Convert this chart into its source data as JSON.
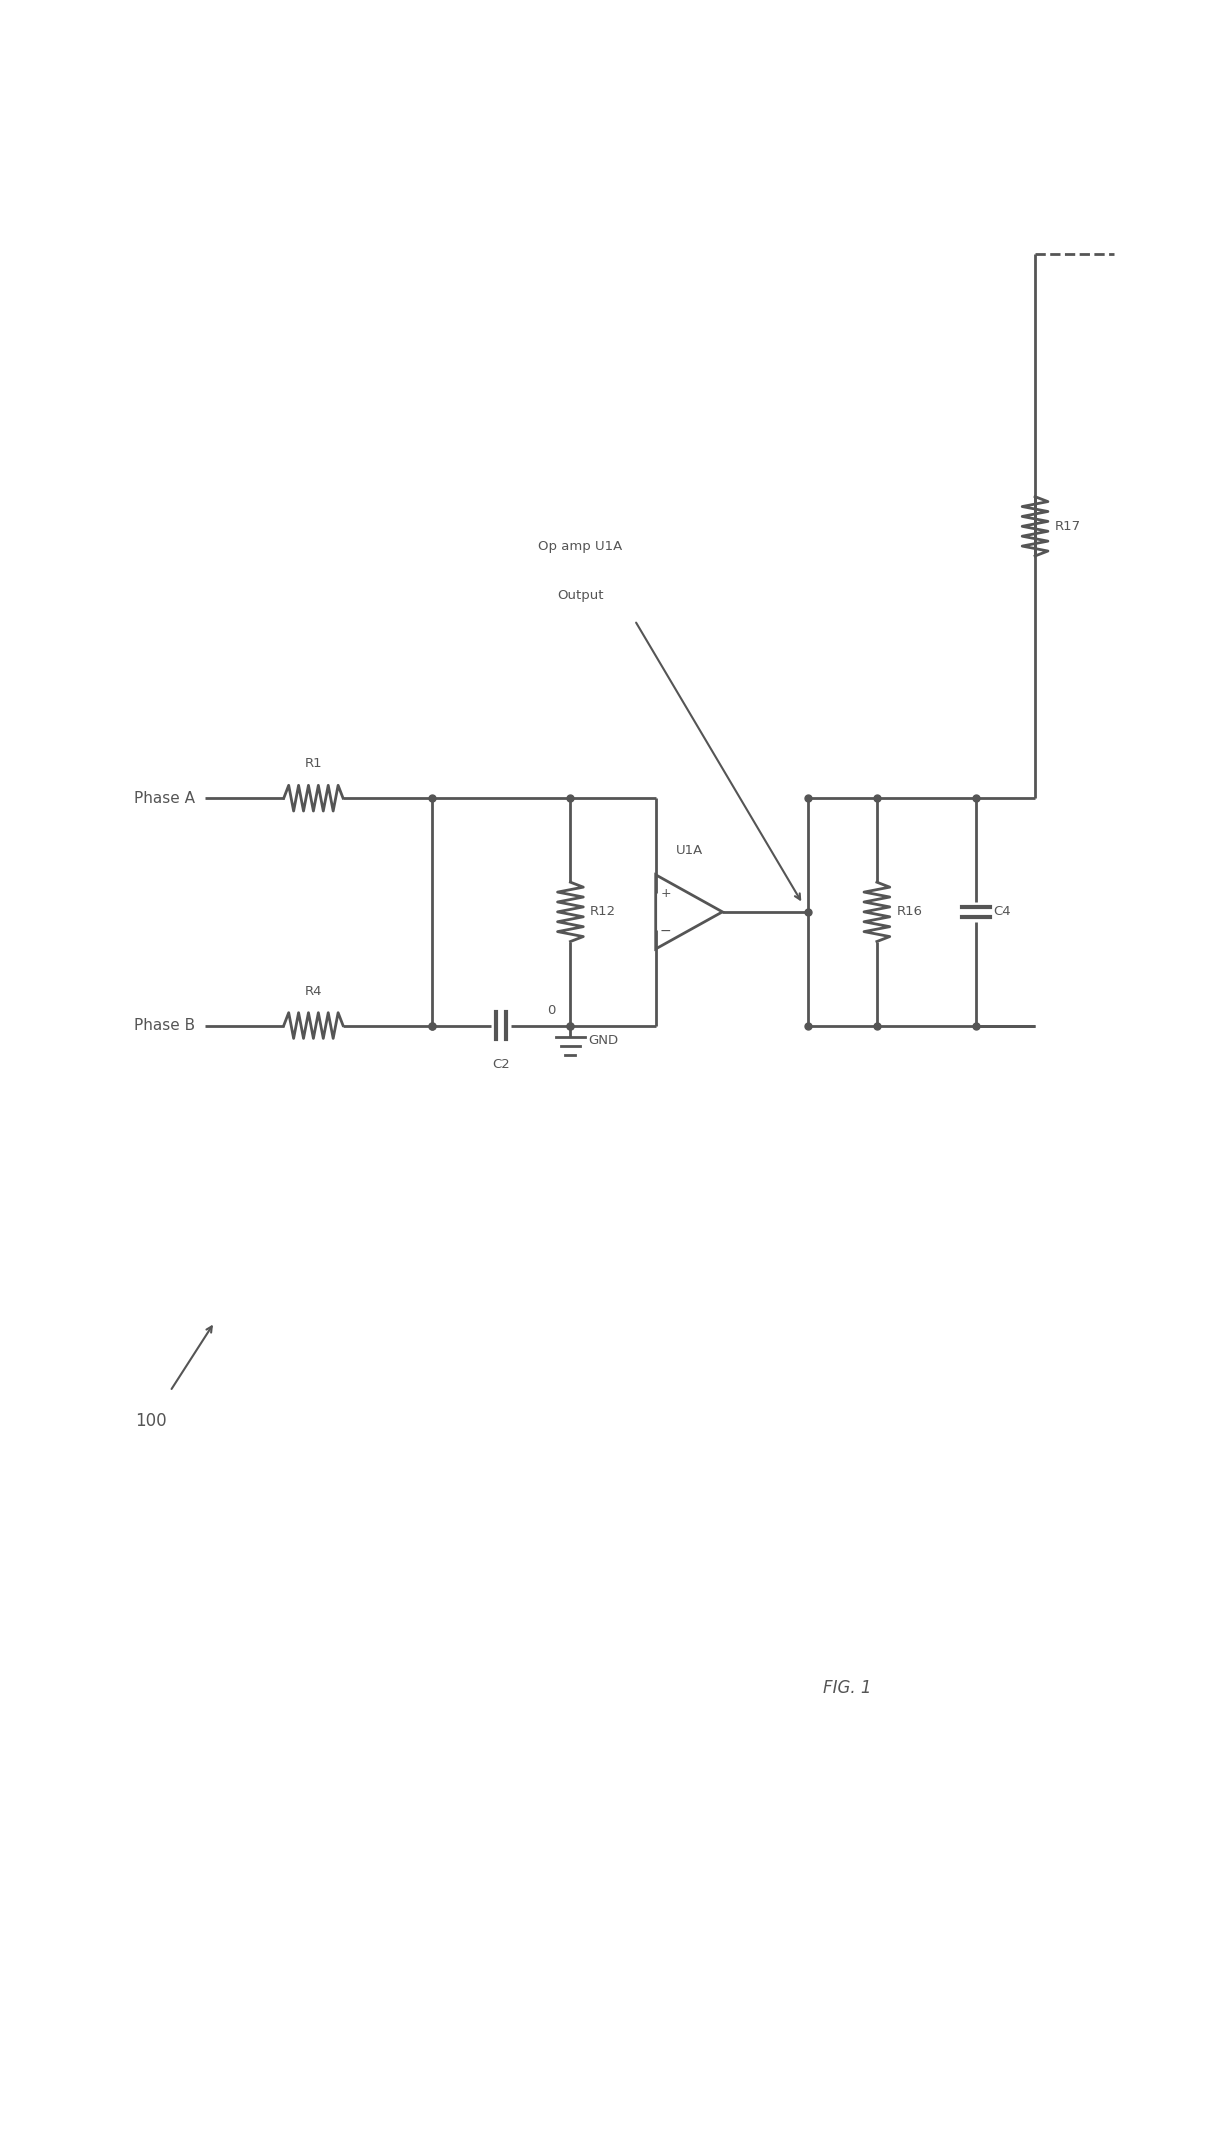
{
  "bg_color": "#ffffff",
  "line_color": "#555555",
  "line_width": 2.0,
  "fig_label": "FIG. 1",
  "ref_label": "100",
  "PA_label": "Phase A",
  "PB_label": "Phase B",
  "components": {
    "R1": "R1",
    "R4": "R4",
    "C2": "C2",
    "R12": "R12",
    "U1A": "U1A",
    "R16": "R16",
    "C4": "C4",
    "R17": "R17",
    "GND": "GND",
    "zero": "0",
    "annotation_line1": "Op amp U1A",
    "annotation_line2": "Output"
  }
}
